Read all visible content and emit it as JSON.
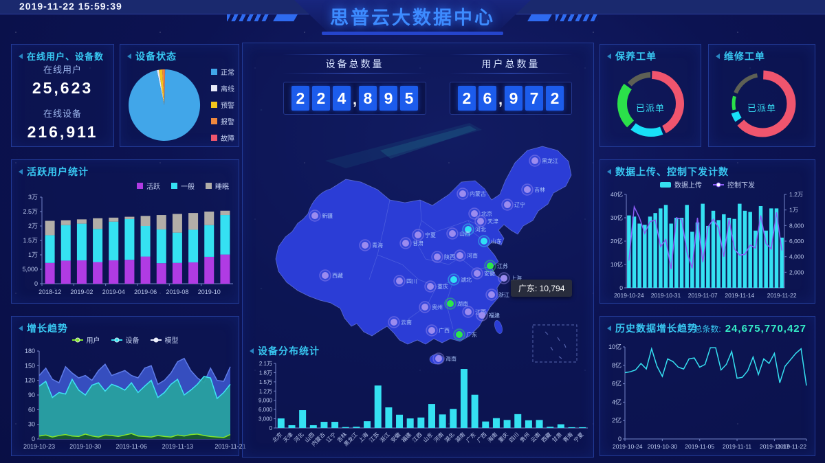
{
  "header": {
    "timestamp": "2019-11-22 15:59:39",
    "title": "思普云大数据中心"
  },
  "panels": {
    "online": {
      "title": "在线用户、设备数",
      "items": [
        {
          "label": "在线用户",
          "value": "25,623"
        },
        {
          "label": "在线设备",
          "value": "216,911"
        }
      ]
    },
    "deviceStatus": {
      "title": "设备状态"
    },
    "activeUsers": {
      "title": "活跃用户统计"
    },
    "growth": {
      "title": "增长趋势"
    },
    "maintenance": {
      "title": "保养工单",
      "center_label": "已派单"
    },
    "repair": {
      "title": "维修工单",
      "center_label": "已派单"
    },
    "upload": {
      "title": "数据上传、控制下发计数"
    },
    "history": {
      "title": "历史数据增长趋势",
      "total_label": "总条数:",
      "total_value": "24,675,770,427"
    },
    "distribution": {
      "title": "设备分布统计"
    }
  },
  "kpis": {
    "device_total": {
      "label": "设备总数量",
      "digits": "224,895"
    },
    "user_total": {
      "label": "用户总数量",
      "digits": "26,972"
    }
  },
  "colors": {
    "accent_cyan": "#38C8F2",
    "bar_cyan": "#35E1F2",
    "purple": "#B03BE3",
    "gray": "#B2AEA8",
    "area_teal": "#27A39E",
    "area_blue": "#3A53C8",
    "green_line": "#7FE32B",
    "donut_red": "#F0556E",
    "donut_cyan": "#18E0F8",
    "donut_green": "#2BE04A",
    "donut_gray": "#5E6055",
    "digit_box": "#1C5CEC",
    "map_fill": "#2B3DD6",
    "line_purple": "#8B5CF6"
  },
  "legends": {
    "devicePie": [
      {
        "label": "正常",
        "color": "#41A6E9",
        "type": "sq"
      },
      {
        "label": "离线",
        "color": "#E8EAF8",
        "type": "sq"
      },
      {
        "label": "预警",
        "color": "#F2C61C",
        "type": "sq"
      },
      {
        "label": "报警",
        "color": "#F0883E",
        "type": "sq"
      },
      {
        "label": "故障",
        "color": "#F0566E",
        "type": "sq"
      }
    ],
    "activeUsers": [
      {
        "label": "活跃",
        "color": "#B03BE3",
        "type": "sq"
      },
      {
        "label": "一般",
        "color": "#35E1F2",
        "type": "sq"
      },
      {
        "label": "睡眠",
        "color": "#B2AEA8",
        "type": "sq"
      }
    ],
    "growth": [
      {
        "label": "用户",
        "color": "#7FE32B",
        "type": "dot"
      },
      {
        "label": "设备",
        "color": "#35E1F2",
        "type": "dot"
      },
      {
        "label": "模型",
        "color": "#E8ECFF",
        "type": "dot"
      }
    ],
    "upload": [
      {
        "label": "数据上传",
        "color": "#35E1F2",
        "type": "bar"
      },
      {
        "label": "控制下发",
        "color": "#8B5CF6",
        "type": "linedot"
      }
    ]
  },
  "map": {
    "tooltip": "广东: 10,794",
    "markers": [
      {
        "n": "新疆",
        "x": 105,
        "y": 135,
        "c": "p"
      },
      {
        "n": "西藏",
        "x": 120,
        "y": 222,
        "c": "p"
      },
      {
        "n": "青海",
        "x": 178,
        "y": 178,
        "c": "p"
      },
      {
        "n": "甘肃",
        "x": 237,
        "y": 175,
        "c": "p"
      },
      {
        "n": "宁夏",
        "x": 255,
        "y": 163,
        "c": "p"
      },
      {
        "n": "内蒙古",
        "x": 320,
        "y": 103,
        "c": "p"
      },
      {
        "n": "黑龙江",
        "x": 425,
        "y": 55,
        "c": "p"
      },
      {
        "n": "吉林",
        "x": 414,
        "y": 97,
        "c": "p"
      },
      {
        "n": "辽宁",
        "x": 385,
        "y": 119,
        "c": "p"
      },
      {
        "n": "北京",
        "x": 337,
        "y": 132,
        "c": "p"
      },
      {
        "n": "天津",
        "x": 346,
        "y": 143,
        "c": "p"
      },
      {
        "n": "河北",
        "x": 328,
        "y": 155,
        "c": "c"
      },
      {
        "n": "山西",
        "x": 305,
        "y": 161,
        "c": "p"
      },
      {
        "n": "山东",
        "x": 351,
        "y": 172,
        "c": "c"
      },
      {
        "n": "河南",
        "x": 316,
        "y": 193,
        "c": "p"
      },
      {
        "n": "陕西",
        "x": 283,
        "y": 195,
        "c": "p"
      },
      {
        "n": "江苏",
        "x": 360,
        "y": 208,
        "c": "g"
      },
      {
        "n": "安徽",
        "x": 341,
        "y": 219,
        "c": "p"
      },
      {
        "n": "上海",
        "x": 380,
        "y": 226,
        "c": "p"
      },
      {
        "n": "湖北",
        "x": 307,
        "y": 228,
        "c": "c"
      },
      {
        "n": "重庆",
        "x": 273,
        "y": 238,
        "c": "p"
      },
      {
        "n": "四川",
        "x": 228,
        "y": 230,
        "c": "p"
      },
      {
        "n": "浙江",
        "x": 362,
        "y": 250,
        "c": "p"
      },
      {
        "n": "湖南",
        "x": 302,
        "y": 263,
        "c": "g"
      },
      {
        "n": "江西",
        "x": 328,
        "y": 275,
        "c": "p"
      },
      {
        "n": "贵州",
        "x": 265,
        "y": 268,
        "c": "p"
      },
      {
        "n": "福建",
        "x": 348,
        "y": 280,
        "c": "p"
      },
      {
        "n": "云南",
        "x": 220,
        "y": 290,
        "c": "p"
      },
      {
        "n": "广西",
        "x": 275,
        "y": 302,
        "c": "p"
      },
      {
        "n": "广东",
        "x": 315,
        "y": 308,
        "c": "g"
      },
      {
        "n": "海南",
        "x": 285,
        "y": 343,
        "c": "p"
      }
    ]
  },
  "chart_data": [
    {
      "id": "devicePie",
      "type": "pie",
      "title": "设备状态",
      "labels": [
        "离线",
        "预警",
        "报警",
        "故障",
        "正常"
      ],
      "values": [
        0.9,
        1.5,
        1.2,
        0.1,
        96.3
      ],
      "slice_colors": [
        "#E8EAF8",
        "#F2C61C",
        "#F0883E",
        "#F0566E",
        "#41A6E9"
      ],
      "start_angle_deg": -12,
      "legend_position": "right"
    },
    {
      "id": "activeUsers",
      "type": "bar",
      "title": "活跃用户统计",
      "stacked": true,
      "categories": [
        "2018-12",
        "2019-01",
        "2019-02",
        "2019-03",
        "2019-04",
        "2019-05",
        "2019-06",
        "2019-07",
        "2019-08",
        "2019-09",
        "2019-10",
        "2019-11"
      ],
      "series": [
        {
          "name": "活跃",
          "color": "#B03BE3",
          "values": [
            7200,
            8000,
            8100,
            7500,
            8100,
            8300,
            9400,
            7100,
            7200,
            7400,
            9300,
            10100
          ]
        },
        {
          "name": "一般",
          "color": "#35E1F2",
          "values": [
            9600,
            12300,
            12700,
            11500,
            13400,
            14100,
            10600,
            11700,
            10500,
            11300,
            11000,
            13700
          ]
        },
        {
          "name": "睡眠",
          "color": "#B2AEA8",
          "values": [
            5000,
            1700,
            1500,
            3700,
            1400,
            800,
            3500,
            5000,
            6500,
            5800,
            4700,
            1500
          ]
        }
      ],
      "ylim": [
        0,
        30000
      ],
      "yticks": [
        {
          "v": 0,
          "label": "0"
        },
        {
          "v": 5000,
          "label": "5,000"
        },
        {
          "v": 10000,
          "label": "1万"
        },
        {
          "v": 15000,
          "label": "1.5万"
        },
        {
          "v": 20000,
          "label": "2万"
        },
        {
          "v": 25000,
          "label": "2.5万"
        },
        {
          "v": 30000,
          "label": "3万"
        }
      ],
      "xtick_idx": [
        0,
        2,
        4,
        6,
        8,
        10
      ],
      "xticks": [
        "2018-12",
        "2019-02",
        "2019-04",
        "2019-06",
        "2019-08",
        "2019-10"
      ]
    },
    {
      "id": "growth",
      "type": "area",
      "title": "增长趋势",
      "ylim": [
        0,
        180
      ],
      "yticks": [
        {
          "v": 0,
          "label": "0"
        },
        {
          "v": 30,
          "label": "30"
        },
        {
          "v": 60,
          "label": "60"
        },
        {
          "v": 90,
          "label": "90"
        },
        {
          "v": 120,
          "label": "120"
        },
        {
          "v": 150,
          "label": "150"
        },
        {
          "v": 180,
          "label": "180"
        }
      ],
      "xtick_idx": [
        0,
        7,
        14,
        21,
        29
      ],
      "xticks": [
        "2019-10-23",
        "2019-10-30",
        "2019-11-06",
        "2019-11-13",
        "2019-11-21"
      ],
      "series": [
        {
          "name": "模型",
          "line": "#5F7CE8",
          "fill": "#3A53C8",
          "values": [
            130,
            145,
            122,
            115,
            148,
            135,
            125,
            130,
            120,
            140,
            153,
            130,
            135,
            140,
            130,
            125,
            145,
            150,
            112,
            120,
            135,
            158,
            165,
            140,
            125,
            115,
            145,
            120,
            118,
            148
          ]
        },
        {
          "name": "设备",
          "line": "#3FE3F5",
          "fill": "#27A39E",
          "values": [
            108,
            118,
            85,
            95,
            92,
            122,
            100,
            90,
            110,
            115,
            98,
            112,
            107,
            100,
            115,
            95,
            108,
            120,
            85,
            95,
            112,
            122,
            90,
            100,
            112,
            128,
            125,
            83,
            95,
            112
          ]
        },
        {
          "name": "用户",
          "line": "#82E32B",
          "fill": "#15542B",
          "values": [
            6,
            8,
            4,
            7,
            9,
            6,
            5,
            10,
            6,
            4,
            8,
            7,
            5,
            8,
            11,
            6,
            5,
            4,
            7,
            5,
            4,
            8,
            6,
            9,
            10,
            7,
            5,
            4,
            3,
            9
          ]
        }
      ]
    },
    {
      "id": "maintDonut",
      "type": "pie",
      "title": "保养工单",
      "variant": "donut",
      "center_label": "已派单",
      "segments": [
        {
          "color": "#F0556E",
          "frac": 0.42,
          "w": 12,
          "gap": 0.015
        },
        {
          "color": "#18E0F8",
          "frac": 0.165,
          "w": 12,
          "gap": 0.02
        },
        {
          "color": "#2BE04A",
          "frac": 0.225,
          "w": 14,
          "gap": 0.015
        },
        {
          "color": "#5E6055",
          "frac": 0.13,
          "w": 8,
          "gap": 0.03
        }
      ]
    },
    {
      "id": "repairDonut",
      "type": "pie",
      "title": "维修工单",
      "variant": "donut",
      "center_label": "已派单",
      "segments": [
        {
          "color": "#F0556E",
          "frac": 0.63,
          "w": 13,
          "gap": 0.02
        },
        {
          "color": "#18E0F8",
          "frac": 0.045,
          "w": 11,
          "gap": 0.015
        },
        {
          "color": "#2BE04A",
          "frac": 0.075,
          "w": 5,
          "gap": 0.02
        },
        {
          "color": "#5E6055",
          "frac": 0.16,
          "w": 6,
          "gap": 0.03
        }
      ]
    },
    {
      "id": "upload",
      "type": "bar",
      "title": "数据上传、控制下发计数",
      "dual_axis": true,
      "bar_series": {
        "name": "数据上传",
        "color": "#35E1F2",
        "unit": "亿",
        "values": [
          31,
          30.5,
          27.5,
          27,
          30.5,
          32,
          34,
          35.5,
          27.5,
          30,
          30,
          35.5,
          24,
          28,
          36,
          26.5,
          33,
          29,
          31.5,
          30,
          29.5,
          36,
          33,
          32.5,
          24.5,
          35,
          24.5,
          34,
          34,
          21.5
        ]
      },
      "line_series": {
        "name": "控制下发",
        "color": "#8B5CF6",
        "values": [
          3500,
          10400,
          9000,
          7000,
          8500,
          8700,
          5300,
          6200,
          2400,
          9000,
          8800,
          4600,
          2500,
          9000,
          3300,
          7800,
          8800,
          7700,
          4000,
          8800,
          5000,
          4200,
          4300,
          5500,
          5100,
          9300,
          5700,
          5000,
          9700,
          4800
        ]
      },
      "ylim_left": [
        0,
        40
      ],
      "ylim_right": [
        0,
        12000
      ],
      "yticks_left": [
        {
          "v": 0,
          "label": "0"
        },
        {
          "v": 10,
          "label": "10亿"
        },
        {
          "v": 20,
          "label": "20亿"
        },
        {
          "v": 30,
          "label": "30亿"
        },
        {
          "v": 40,
          "label": "40亿"
        }
      ],
      "yticks_right": [
        {
          "v": 2000,
          "label": "2,000"
        },
        {
          "v": 4000,
          "label": "4,000"
        },
        {
          "v": 6000,
          "label": "6,000"
        },
        {
          "v": 8000,
          "label": "8,000"
        },
        {
          "v": 10000,
          "label": "1万"
        },
        {
          "v": 12000,
          "label": "1.2万"
        }
      ],
      "xtick_idx": [
        0,
        7,
        14,
        21,
        29
      ],
      "xticks": [
        "2019-10-24",
        "2019-10-31",
        "2019-11-07",
        "2019-11-14",
        "2019-11-22"
      ]
    },
    {
      "id": "distribution",
      "type": "bar",
      "title": "设备分布统计",
      "color": "#35E1F2",
      "categories": [
        "北京",
        "天津",
        "河北",
        "山西",
        "内蒙古",
        "辽宁",
        "吉林",
        "黑龙江",
        "上海",
        "江苏",
        "浙江",
        "安徽",
        "福建",
        "江西",
        "山东",
        "河南",
        "湖北",
        "湖南",
        "广东",
        "广西",
        "海南",
        "重庆",
        "四川",
        "贵州",
        "云南",
        "西藏",
        "甘肃",
        "青海",
        "宁夏"
      ],
      "values": [
        3100,
        900,
        5800,
        900,
        2000,
        2000,
        300,
        400,
        2200,
        13800,
        6700,
        4300,
        3100,
        3400,
        7800,
        4400,
        6200,
        19200,
        10794,
        2100,
        3200,
        2600,
        4500,
        2500,
        2600,
        400,
        1200,
        250,
        250
      ],
      "ylim": [
        0,
        21000
      ],
      "yticks": [
        {
          "v": 0,
          "label": "0"
        },
        {
          "v": 3000,
          "label": "3,000"
        },
        {
          "v": 6000,
          "label": "6,000"
        },
        {
          "v": 9000,
          "label": "9,000"
        },
        {
          "v": 12000,
          "label": "1.2万"
        },
        {
          "v": 15000,
          "label": "1.5万"
        },
        {
          "v": 18000,
          "label": "1.8万"
        },
        {
          "v": 21000,
          "label": "2.1万"
        }
      ]
    },
    {
      "id": "history",
      "type": "line",
      "title": "历史数据增长趋势",
      "color": "#35E1F2",
      "values": [
        7.2,
        7.3,
        7.5,
        8.2,
        7.6,
        9.8,
        7.9,
        6.8,
        8.7,
        8.4,
        7.8,
        7.6,
        8.7,
        8.8,
        7.8,
        8.1,
        9.9,
        9.9,
        7.5,
        8.1,
        9.5,
        6.6,
        6.7,
        7.4,
        8.9,
        7.0,
        8.7,
        8.2,
        9.3,
        6.1,
        7.9,
        8.6,
        9.3,
        9.8,
        5.8
      ],
      "ylim": [
        0,
        10
      ],
      "unit": "亿",
      "yticks": [
        {
          "v": 0,
          "label": "0"
        },
        {
          "v": 2,
          "label": "2亿"
        },
        {
          "v": 4,
          "label": "4亿"
        },
        {
          "v": 6,
          "label": "6亿"
        },
        {
          "v": 8,
          "label": "8亿"
        },
        {
          "v": 10,
          "label": "10亿"
        }
      ],
      "xtick_idx": [
        0,
        7,
        14,
        21,
        28,
        34
      ],
      "xticks": [
        "2019-10-24",
        "2019-10-30",
        "2019-11-05",
        "2019-11-11",
        "2019-11-17",
        "2019-11-22"
      ]
    }
  ]
}
